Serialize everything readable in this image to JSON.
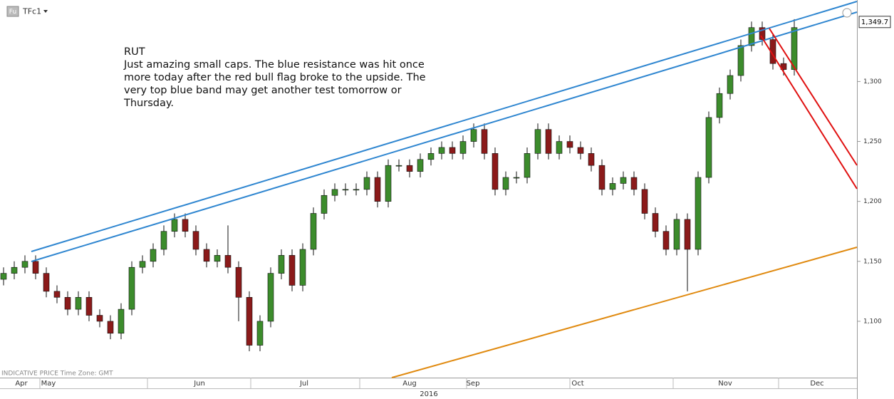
{
  "chart_data": {
    "type": "candlestick",
    "symbol": "TFc1",
    "symbol_badge": "Fu",
    "footer_note": "INDICATIVE PRICE   Time Zone: GMT",
    "annotation": [
      "RUT",
      "Just amazing small caps. The blue resistance was hit once",
      "more today after the red bull flag broke to the upside. The",
      "very top blue band may get another test tomorrow or",
      "Thursday."
    ],
    "months": [
      "Apr",
      "May",
      "Jun",
      "Jul",
      "Aug",
      "Sep",
      "Oct",
      "Nov",
      "Dec"
    ],
    "year": "2016",
    "ylim": [
      1053,
      1368
    ],
    "yticks": [
      {
        "value": 1100,
        "label": "1,100"
      },
      {
        "value": 1150,
        "label": "1,150"
      },
      {
        "value": 1200,
        "label": "1,200"
      },
      {
        "value": 1250,
        "label": "1,250"
      },
      {
        "value": 1300,
        "label": "1,300"
      }
    ],
    "last_price": {
      "value": 1349.7,
      "label": "1,349.7"
    },
    "up_color": "#3c8c2c",
    "down_color": "#8b1a1a",
    "open": [
      1135,
      1140,
      1145,
      1150,
      1140,
      1125,
      1120,
      1110,
      1120,
      1105,
      1100,
      1090,
      1110,
      1145,
      1150,
      1160,
      1175,
      1185,
      1175,
      1160,
      1150,
      1155,
      1145,
      1120,
      1080,
      1100,
      1140,
      1155,
      1130,
      1160,
      1190,
      1205,
      1210,
      1210,
      1210,
      1220,
      1200,
      1230,
      1230,
      1225,
      1235,
      1240,
      1245,
      1240,
      1250,
      1260,
      1240,
      1210,
      1220,
      1220,
      1240,
      1260,
      1240,
      1250,
      1245,
      1240,
      1230,
      1210,
      1215,
      1220,
      1210,
      1190,
      1175,
      1160,
      1185,
      1160,
      1220,
      1270,
      1290,
      1305,
      1330,
      1345,
      1335,
      1315,
      1310
    ],
    "high": [
      1145,
      1150,
      1155,
      1155,
      1145,
      1130,
      1125,
      1125,
      1125,
      1110,
      1105,
      1115,
      1150,
      1155,
      1165,
      1180,
      1190,
      1190,
      1180,
      1165,
      1160,
      1180,
      1150,
      1125,
      1105,
      1145,
      1160,
      1160,
      1165,
      1195,
      1210,
      1215,
      1215,
      1215,
      1225,
      1225,
      1235,
      1235,
      1235,
      1240,
      1245,
      1250,
      1250,
      1255,
      1265,
      1265,
      1245,
      1225,
      1225,
      1245,
      1265,
      1265,
      1255,
      1255,
      1250,
      1245,
      1235,
      1220,
      1225,
      1225,
      1215,
      1195,
      1180,
      1190,
      1190,
      1225,
      1275,
      1295,
      1310,
      1335,
      1350,
      1350,
      1340,
      1320,
      1352
    ],
    "low": [
      1130,
      1135,
      1140,
      1135,
      1120,
      1115,
      1105,
      1105,
      1100,
      1095,
      1085,
      1085,
      1105,
      1140,
      1145,
      1155,
      1170,
      1170,
      1155,
      1145,
      1145,
      1140,
      1100,
      1075,
      1075,
      1095,
      1135,
      1125,
      1125,
      1155,
      1185,
      1200,
      1205,
      1205,
      1205,
      1195,
      1195,
      1225,
      1220,
      1220,
      1230,
      1235,
      1235,
      1235,
      1245,
      1235,
      1205,
      1205,
      1215,
      1215,
      1235,
      1235,
      1235,
      1240,
      1235,
      1225,
      1205,
      1205,
      1210,
      1205,
      1185,
      1170,
      1155,
      1155,
      1125,
      1155,
      1215,
      1265,
      1285,
      1300,
      1325,
      1330,
      1310,
      1305,
      1305
    ],
    "close": [
      1140,
      1145,
      1150,
      1140,
      1125,
      1120,
      1110,
      1120,
      1105,
      1100,
      1090,
      1110,
      1145,
      1150,
      1160,
      1175,
      1185,
      1175,
      1160,
      1150,
      1155,
      1145,
      1120,
      1080,
      1100,
      1140,
      1155,
      1130,
      1160,
      1190,
      1205,
      1210,
      1210,
      1210,
      1220,
      1200,
      1230,
      1230,
      1225,
      1235,
      1240,
      1245,
      1240,
      1250,
      1260,
      1240,
      1210,
      1220,
      1220,
      1240,
      1260,
      1240,
      1250,
      1245,
      1240,
      1230,
      1210,
      1215,
      1220,
      1210,
      1190,
      1175,
      1160,
      1185,
      1160,
      1220,
      1270,
      1290,
      1305,
      1330,
      1345,
      1335,
      1315,
      1310,
      1345
    ]
  }
}
